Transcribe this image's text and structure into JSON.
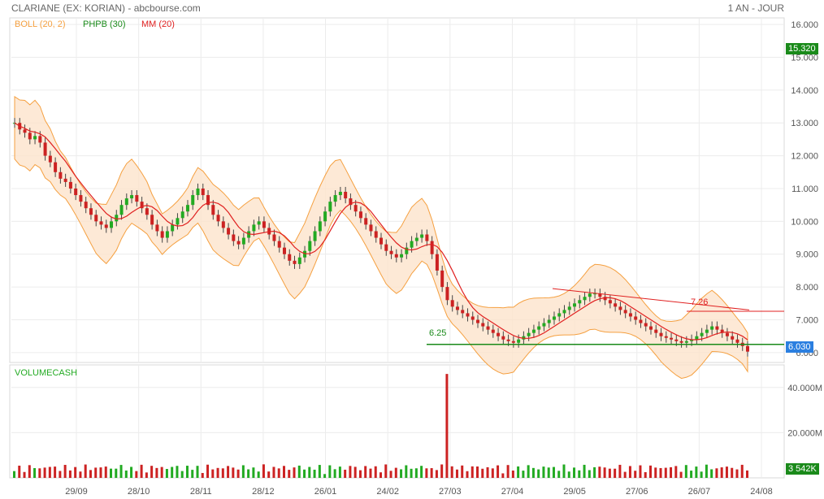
{
  "header": {
    "title": "CLARIANE (EX: KORIAN) - abcbourse.com",
    "period": "1 AN - JOUR"
  },
  "legend": {
    "boll": "BOLL (20, 2)",
    "phpb": "PHPB (30)",
    "mm": "MM (20)",
    "volume": "VOLUMECASH"
  },
  "colors": {
    "boll": "#f5a040",
    "boll_fill": "#fde3cc",
    "mm": "#e02020",
    "phpb": "#1a8a1a",
    "up": "#22aa22",
    "down": "#cc2222",
    "last_price_bg": "#2b7fe0",
    "last_close_bg": "#1a8a1a",
    "volume_tag_bg": "#1a8a1a"
  },
  "tags": {
    "last_close": "15.320",
    "last_price": "6.030",
    "last_volume": "3 542K"
  },
  "annotations": {
    "support": "6.25",
    "resistance": "7.26"
  },
  "chart_data": [
    {
      "type": "candlestick",
      "title": "CLARIANE (EX: KORIAN)",
      "ylim": [
        5.7,
        16.2
      ],
      "yticks": [
        "16.000",
        "15.000",
        "14.000",
        "13.000",
        "12.000",
        "11.000",
        "10.000",
        "9.000",
        "8.000",
        "7.000",
        "6.000"
      ],
      "xticks": [
        "29/09",
        "28/10",
        "28/11",
        "28/12",
        "26/01",
        "24/02",
        "27/03",
        "27/04",
        "29/05",
        "27/06",
        "26/07",
        "24/08"
      ],
      "series_close_path": [
        13.0,
        12.8,
        12.7,
        12.5,
        12.6,
        12.4,
        12.0,
        11.8,
        11.5,
        11.3,
        11.2,
        11.0,
        10.8,
        10.6,
        10.4,
        10.2,
        10.0,
        9.9,
        9.8,
        10.0,
        10.2,
        10.5,
        10.7,
        10.8,
        10.6,
        10.4,
        10.2,
        9.9,
        9.7,
        9.5,
        9.7,
        9.9,
        10.1,
        10.3,
        10.5,
        10.8,
        11.0,
        10.8,
        10.5,
        10.2,
        10.0,
        9.8,
        9.6,
        9.4,
        9.3,
        9.5,
        9.7,
        9.9,
        10.0,
        9.8,
        9.6,
        9.4,
        9.2,
        9.0,
        8.8,
        8.7,
        8.9,
        9.1,
        9.4,
        9.7,
        10.0,
        10.3,
        10.6,
        10.8,
        10.9,
        10.7,
        10.5,
        10.3,
        10.1,
        9.9,
        9.7,
        9.5,
        9.3,
        9.1,
        9.0,
        8.9,
        9.0,
        9.2,
        9.4,
        9.5,
        9.6,
        9.4,
        9.0,
        8.5,
        8.0,
        7.6,
        7.4,
        7.3,
        7.2,
        7.1,
        7.0,
        6.9,
        6.8,
        6.7,
        6.6,
        6.5,
        6.4,
        6.35,
        6.3,
        6.4,
        6.5,
        6.6,
        6.7,
        6.8,
        6.9,
        7.0,
        7.1,
        7.2,
        7.3,
        7.4,
        7.5,
        7.6,
        7.7,
        7.8,
        7.8,
        7.7,
        7.6,
        7.5,
        7.4,
        7.3,
        7.2,
        7.1,
        7.0,
        6.9,
        6.8,
        6.7,
        6.6,
        6.5,
        6.45,
        6.4,
        6.35,
        6.3,
        6.35,
        6.4,
        6.5,
        6.6,
        6.7,
        6.8,
        6.7,
        6.6,
        6.5,
        6.4,
        6.3,
        6.2,
        6.03
      ]
    },
    {
      "type": "bar",
      "title": "VOLUMECASH",
      "ylim": [
        0,
        50
      ],
      "yticks": [
        "40.000M",
        "20.000M"
      ],
      "unit": "M",
      "spike_index": 85,
      "spike_value": 46
    }
  ]
}
